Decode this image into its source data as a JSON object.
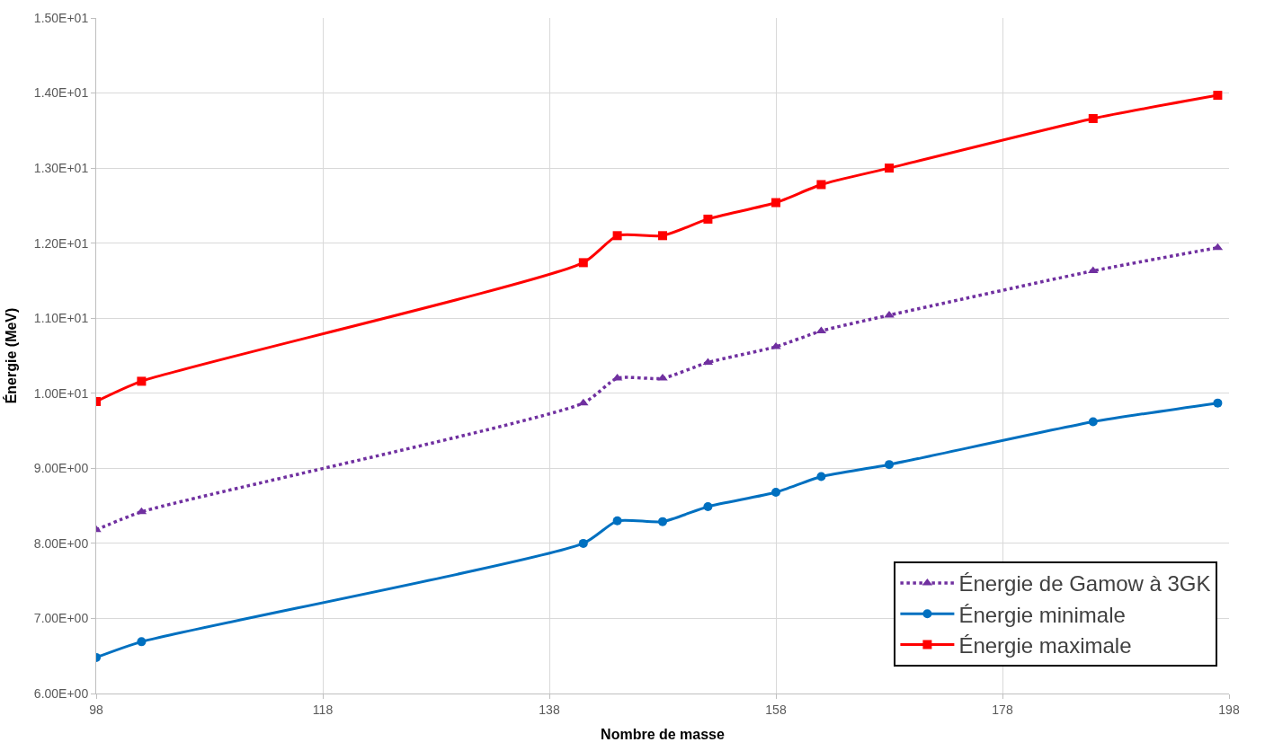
{
  "chart_data": {
    "type": "line",
    "xlabel": "Nombre de masse",
    "ylabel": "Énergie (MeV)",
    "x": [
      98,
      102,
      141,
      144,
      148,
      152,
      158,
      162,
      168,
      186,
      197
    ],
    "series": [
      {
        "name": "Énergie de Gamow à 3GK",
        "color": "#7030a0",
        "marker": "triangle",
        "line_style": "dotted",
        "values": [
          8.18,
          8.42,
          9.87,
          10.2,
          10.2,
          10.41,
          10.62,
          10.83,
          11.04,
          11.63,
          11.94
        ]
      },
      {
        "name": "Énergie minimale",
        "color": "#0070c0",
        "marker": "circle",
        "line_style": "solid",
        "values": [
          6.48,
          6.69,
          8.0,
          8.3,
          8.29,
          8.49,
          8.68,
          8.89,
          9.05,
          9.62,
          9.87
        ]
      },
      {
        "name": "Énergie maximale",
        "color": "#ff0000",
        "marker": "square",
        "line_style": "solid",
        "values": [
          9.89,
          10.16,
          11.74,
          12.1,
          12.1,
          12.32,
          12.54,
          12.78,
          13.0,
          13.66,
          13.97
        ]
      }
    ],
    "xlim": [
      98,
      198
    ],
    "xticks": [
      98,
      118,
      138,
      158,
      178,
      198
    ],
    "ylim": [
      6,
      15
    ],
    "yticks": [
      {
        "value": 6,
        "label": "6.00E+00"
      },
      {
        "value": 7,
        "label": "7.00E+00"
      },
      {
        "value": 8,
        "label": "8.00E+00"
      },
      {
        "value": 9,
        "label": "9.00E+00"
      },
      {
        "value": 10,
        "label": "1.00E+01"
      },
      {
        "value": 11,
        "label": "1.10E+01"
      },
      {
        "value": 12,
        "label": "1.20E+01"
      },
      {
        "value": 13,
        "label": "1.30E+01"
      },
      {
        "value": 14,
        "label": "1.40E+01"
      },
      {
        "value": 15,
        "label": "1.50E+01"
      }
    ],
    "grid": true,
    "legend": "bottom right"
  }
}
